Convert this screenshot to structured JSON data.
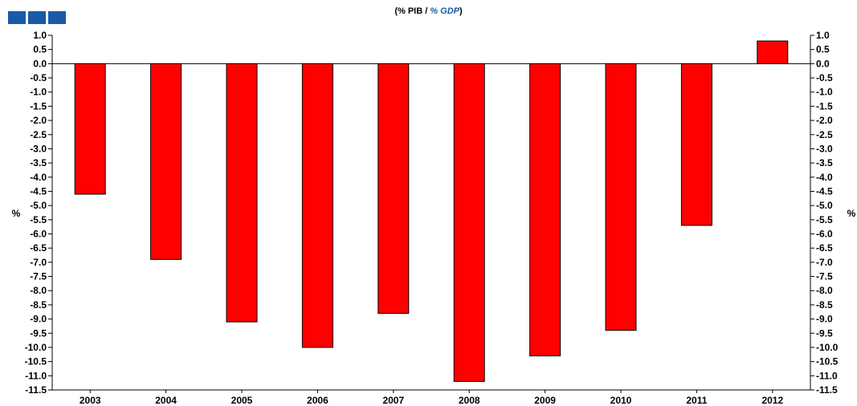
{
  "header": {
    "title_prefix": "(% PIB / ",
    "title_gdp": "% GDP",
    "title_suffix": ")"
  },
  "colors": {
    "bar": "#ff0000",
    "logo": "#1a5aa6"
  },
  "chart_data": {
    "type": "bar",
    "title": "(% PIB / % GDP)",
    "ylabel": "%",
    "ylabel_right": "%",
    "categories": [
      "2003",
      "2004",
      "2005",
      "2006",
      "2007",
      "2008",
      "2009",
      "2010",
      "2011",
      "2012"
    ],
    "values": [
      -4.6,
      -6.9,
      -9.1,
      -10.0,
      -8.8,
      -11.2,
      -10.3,
      -9.4,
      -5.7,
      0.8
    ],
    "ylim": [
      -11.5,
      1.0
    ],
    "yticks": [
      "1.0",
      "0.5",
      "0.0",
      "-0.5",
      "-1.0",
      "-1.5",
      "-2.0",
      "-2.5",
      "-3.0",
      "-3.5",
      "-4.0",
      "-4.5",
      "-5.0",
      "-5.5",
      "-6.0",
      "-6.5",
      "-7.0",
      "-7.5",
      "-8.0",
      "-8.5",
      "-9.0",
      "-9.5",
      "-10.0",
      "-10.5",
      "-11.0",
      "-11.5"
    ],
    "grid": false,
    "legend": "none"
  }
}
